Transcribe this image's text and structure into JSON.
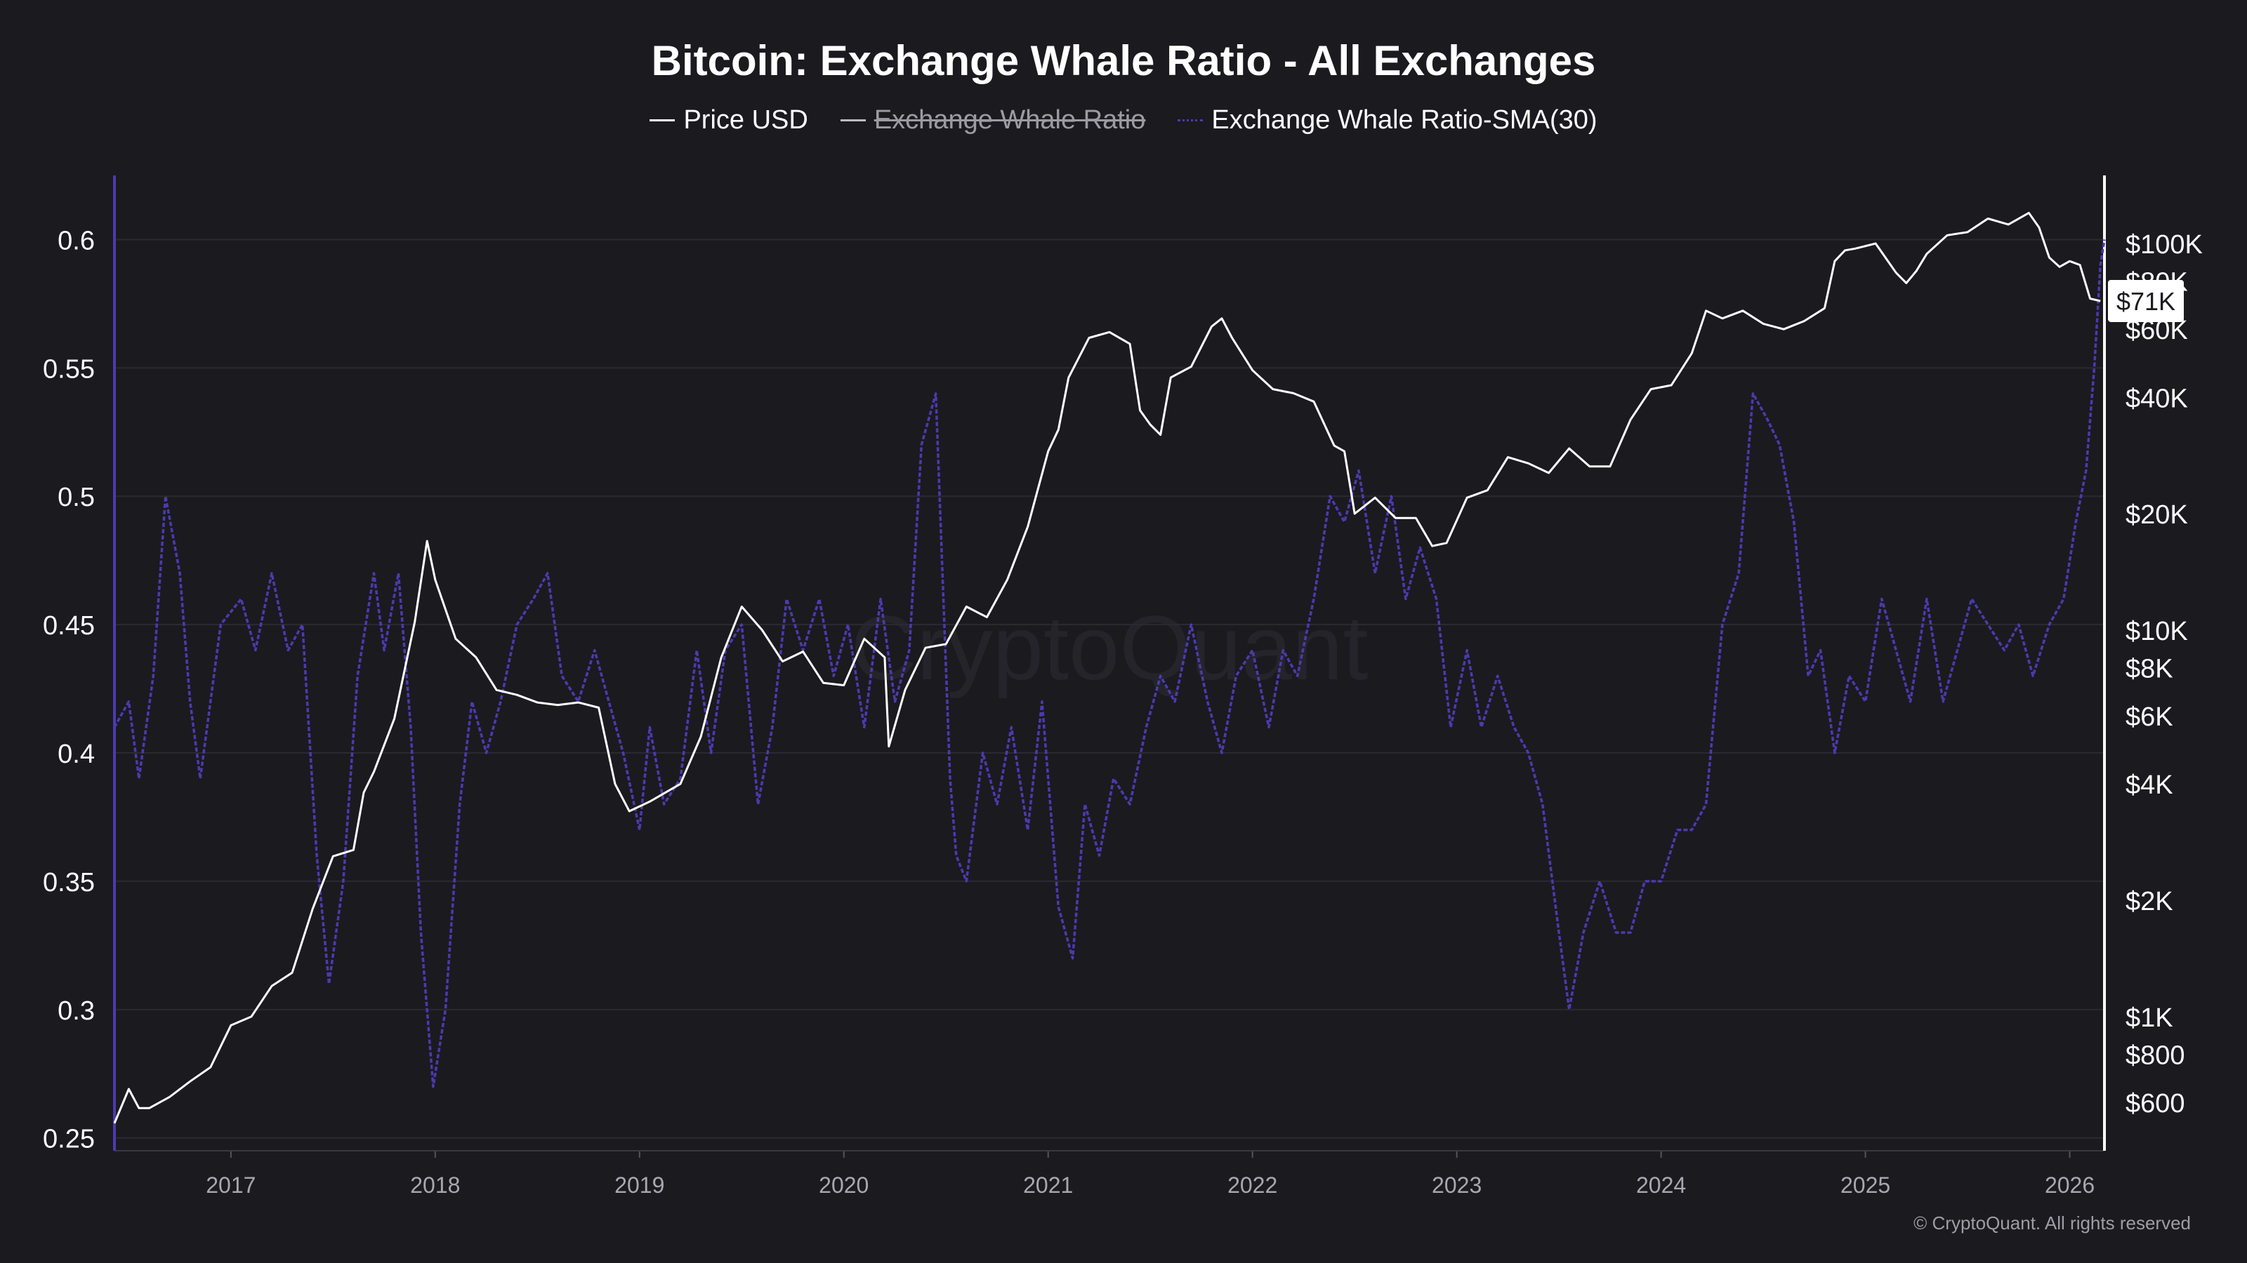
{
  "title": "Bitcoin: Exchange Whale Ratio - All Exchanges",
  "legend": [
    {
      "label": "Price USD",
      "color": "#ffffff",
      "visible": true
    },
    {
      "label": "Exchange Whale Ratio",
      "color": "#bdbcc4",
      "visible": false
    },
    {
      "label": "Exchange Whale Ratio-SMA(30)",
      "color": "#4b3bb0",
      "visible": true
    }
  ],
  "watermark": "CryptoQuant",
  "copyright": "© CryptoQuant. All rights reserved",
  "price_marker": "$71K",
  "colors": {
    "background": "#1b1a1f",
    "price": "#ffffff",
    "sma": "#4b3bb0",
    "grid": "#2b2a31"
  },
  "chart_data": {
    "type": "line",
    "title": "Bitcoin: Exchange Whale Ratio - All Exchanges",
    "grid": true,
    "legend_position": "top-center",
    "x_axis": {
      "ticks": [
        "2017",
        "2018",
        "2019",
        "2020",
        "2021",
        "2022",
        "2023",
        "2024",
        "2025",
        "2026"
      ],
      "range": [
        2016.43,
        2026.17
      ]
    },
    "y_left": {
      "ticks": [
        "0.25",
        "0.3",
        "0.35",
        "0.4",
        "0.45",
        "0.5",
        "0.55",
        "0.6"
      ],
      "range": [
        0.245,
        0.625
      ]
    },
    "y_right": {
      "scale": "log",
      "ticks": [
        "$600",
        "$800",
        "$1K",
        "$2K",
        "$4K",
        "$6K",
        "$8K",
        "$10K",
        "$20K",
        "$40K",
        "$60K",
        "$80K",
        "$100K"
      ],
      "range": [
        450,
        150000
      ]
    },
    "series": [
      {
        "name": "Price USD",
        "axis": "right",
        "x": [
          2016.43,
          2016.5,
          2016.55,
          2016.6,
          2016.7,
          2016.8,
          2016.9,
          2017.0,
          2017.1,
          2017.2,
          2017.3,
          2017.4,
          2017.5,
          2017.6,
          2017.65,
          2017.7,
          2017.8,
          2017.9,
          2017.96,
          2018.0,
          2018.1,
          2018.2,
          2018.3,
          2018.4,
          2018.5,
          2018.6,
          2018.7,
          2018.8,
          2018.88,
          2018.95,
          2019.05,
          2019.2,
          2019.3,
          2019.4,
          2019.5,
          2019.6,
          2019.7,
          2019.8,
          2019.9,
          2020.0,
          2020.1,
          2020.2,
          2020.22,
          2020.3,
          2020.4,
          2020.5,
          2020.6,
          2020.7,
          2020.8,
          2020.9,
          2021.0,
          2021.05,
          2021.1,
          2021.2,
          2021.3,
          2021.4,
          2021.45,
          2021.5,
          2021.55,
          2021.6,
          2021.7,
          2021.8,
          2021.85,
          2021.9,
          2022.0,
          2022.1,
          2022.2,
          2022.3,
          2022.4,
          2022.45,
          2022.5,
          2022.6,
          2022.7,
          2022.8,
          2022.88,
          2022.95,
          2023.05,
          2023.15,
          2023.25,
          2023.35,
          2023.45,
          2023.55,
          2023.65,
          2023.75,
          2023.85,
          2023.95,
          2024.05,
          2024.15,
          2024.22,
          2024.3,
          2024.4,
          2024.5,
          2024.6,
          2024.7,
          2024.8,
          2024.85,
          2024.9,
          2024.95,
          2025.05,
          2025.15,
          2025.2,
          2025.25,
          2025.3,
          2025.4,
          2025.5,
          2025.6,
          2025.7,
          2025.8,
          2025.85,
          2025.9,
          2025.95,
          2026.0,
          2026.05,
          2026.1,
          2026.15
        ],
        "values": [
          530,
          650,
          580,
          580,
          620,
          680,
          740,
          950,
          1000,
          1200,
          1300,
          1900,
          2600,
          2700,
          3800,
          4300,
          5900,
          10500,
          17000,
          13500,
          9500,
          8500,
          7000,
          6800,
          6500,
          6400,
          6500,
          6300,
          4000,
          3400,
          3600,
          4000,
          5300,
          8500,
          11500,
          10000,
          8300,
          8800,
          7300,
          7200,
          9500,
          8500,
          5000,
          7000,
          9000,
          9200,
          11500,
          10800,
          13500,
          18500,
          29000,
          33000,
          45000,
          57000,
          59000,
          55000,
          37000,
          34000,
          32000,
          45000,
          48000,
          61000,
          64000,
          57000,
          47000,
          42000,
          41000,
          39000,
          30000,
          29000,
          20000,
          22000,
          19500,
          19500,
          16500,
          16800,
          22000,
          23000,
          28000,
          27000,
          25500,
          29500,
          26500,
          26500,
          35000,
          42000,
          43000,
          52000,
          67000,
          64000,
          67000,
          62000,
          60000,
          63000,
          68000,
          90000,
          96000,
          97000,
          100000,
          84000,
          79000,
          85000,
          94000,
          105000,
          107000,
          116000,
          112000,
          120000,
          110000,
          92000,
          87000,
          90000,
          88000,
          72000,
          71000
        ]
      },
      {
        "name": "Exchange Whale Ratio-SMA(30)",
        "axis": "left",
        "x": [
          2016.43,
          2016.5,
          2016.55,
          2016.62,
          2016.68,
          2016.75,
          2016.8,
          2016.85,
          2016.95,
          2017.05,
          2017.12,
          2017.2,
          2017.28,
          2017.35,
          2017.42,
          2017.48,
          2017.55,
          2017.62,
          2017.7,
          2017.75,
          2017.82,
          2017.88,
          2017.93,
          2017.99,
          2018.05,
          2018.12,
          2018.18,
          2018.25,
          2018.32,
          2018.4,
          2018.48,
          2018.55,
          2018.62,
          2018.7,
          2018.78,
          2018.85,
          2018.92,
          2019.0,
          2019.05,
          2019.12,
          2019.2,
          2019.28,
          2019.35,
          2019.42,
          2019.5,
          2019.58,
          2019.65,
          2019.72,
          2019.8,
          2019.88,
          2019.95,
          2020.02,
          2020.1,
          2020.18,
          2020.25,
          2020.32,
          2020.38,
          2020.45,
          2020.52,
          2020.55,
          2020.6,
          2020.68,
          2020.75,
          2020.82,
          2020.9,
          2020.97,
          2021.05,
          2021.12,
          2021.18,
          2021.25,
          2021.32,
          2021.4,
          2021.48,
          2021.55,
          2021.62,
          2021.7,
          2021.78,
          2021.85,
          2021.92,
          2022.0,
          2022.08,
          2022.15,
          2022.22,
          2022.3,
          2022.38,
          2022.45,
          2022.52,
          2022.6,
          2022.68,
          2022.75,
          2022.82,
          2022.9,
          2022.97,
          2023.05,
          2023.12,
          2023.2,
          2023.28,
          2023.35,
          2023.42,
          2023.5,
          2023.55,
          2023.62,
          2023.7,
          2023.78,
          2023.85,
          2023.92,
          2024.0,
          2024.08,
          2024.15,
          2024.22,
          2024.3,
          2024.38,
          2024.45,
          2024.52,
          2024.58,
          2024.65,
          2024.72,
          2024.78,
          2024.85,
          2024.92,
          2025.0,
          2025.08,
          2025.15,
          2025.22,
          2025.3,
          2025.38,
          2025.45,
          2025.52,
          2025.6,
          2025.68,
          2025.75,
          2025.82,
          2025.9,
          2025.97,
          2026.03,
          2026.08,
          2026.12,
          2026.15,
          2026.17
        ],
        "values": [
          0.41,
          0.42,
          0.39,
          0.43,
          0.5,
          0.47,
          0.42,
          0.39,
          0.45,
          0.46,
          0.44,
          0.47,
          0.44,
          0.45,
          0.36,
          0.31,
          0.35,
          0.43,
          0.47,
          0.44,
          0.47,
          0.41,
          0.33,
          0.27,
          0.3,
          0.38,
          0.42,
          0.4,
          0.42,
          0.45,
          0.46,
          0.47,
          0.43,
          0.42,
          0.44,
          0.42,
          0.4,
          0.37,
          0.41,
          0.38,
          0.39,
          0.44,
          0.4,
          0.44,
          0.45,
          0.38,
          0.41,
          0.46,
          0.44,
          0.46,
          0.43,
          0.45,
          0.41,
          0.46,
          0.42,
          0.44,
          0.52,
          0.54,
          0.39,
          0.36,
          0.35,
          0.4,
          0.38,
          0.41,
          0.37,
          0.42,
          0.34,
          0.32,
          0.38,
          0.36,
          0.39,
          0.38,
          0.41,
          0.43,
          0.42,
          0.45,
          0.42,
          0.4,
          0.43,
          0.44,
          0.41,
          0.44,
          0.43,
          0.46,
          0.5,
          0.49,
          0.51,
          0.47,
          0.5,
          0.46,
          0.48,
          0.46,
          0.41,
          0.44,
          0.41,
          0.43,
          0.41,
          0.4,
          0.38,
          0.33,
          0.3,
          0.33,
          0.35,
          0.33,
          0.33,
          0.35,
          0.35,
          0.37,
          0.37,
          0.38,
          0.45,
          0.47,
          0.54,
          0.53,
          0.52,
          0.49,
          0.43,
          0.44,
          0.4,
          0.43,
          0.42,
          0.46,
          0.44,
          0.42,
          0.46,
          0.42,
          0.44,
          0.46,
          0.45,
          0.44,
          0.45,
          0.43,
          0.45,
          0.46,
          0.49,
          0.51,
          0.55,
          0.59,
          0.6
        ]
      }
    ]
  }
}
